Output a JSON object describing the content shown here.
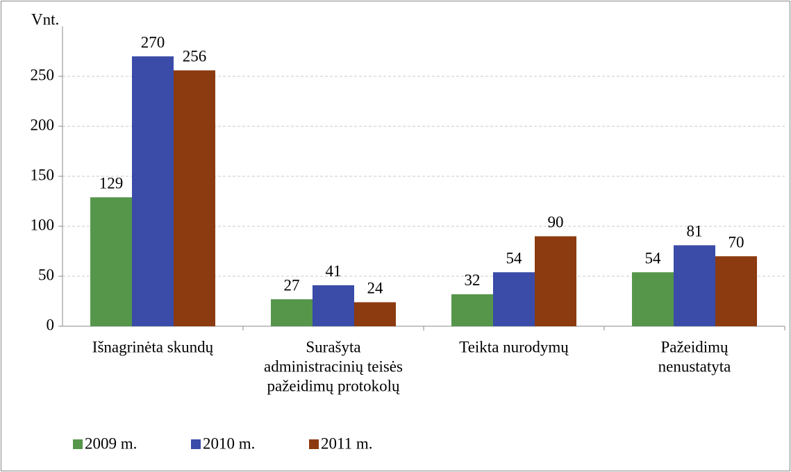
{
  "chart_data": {
    "type": "bar",
    "y_label": "Vnt.",
    "categories": [
      [
        "Išnagrinėta skundų"
      ],
      [
        "Surašyta",
        "administracinių teisės",
        "pažeidimų protokolų"
      ],
      [
        "Teikta nurodymų"
      ],
      [
        "Pažeidimų",
        "nenustatyta"
      ]
    ],
    "series": [
      {
        "name": "2009 m.",
        "color": "#55964b",
        "values": [
          129,
          27,
          32,
          54
        ]
      },
      {
        "name": "2010 m.",
        "color": "#3a4ba8",
        "values": [
          270,
          41,
          54,
          81
        ]
      },
      {
        "name": "2011 m.",
        "color": "#8c3a0f",
        "values": [
          256,
          24,
          90,
          70
        ]
      }
    ],
    "ylim": [
      0,
      300
    ],
    "yticks": [
      0,
      50,
      100,
      150,
      200,
      250
    ],
    "grid": true,
    "legend": "bottom"
  }
}
